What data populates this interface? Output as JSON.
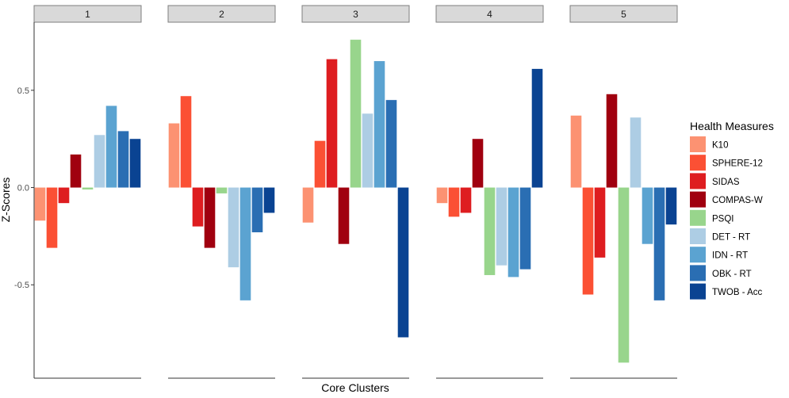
{
  "chart_data": {
    "type": "bar",
    "xlabel": "Core Clusters",
    "ylabel": "Z-Scores",
    "ylim": [
      -0.98,
      0.85
    ],
    "yticks": [
      {
        "value": 0.5,
        "label": "0.5"
      },
      {
        "value": 0.0,
        "label": "0.0"
      },
      {
        "value": -0.5,
        "label": "-0.5"
      }
    ],
    "facets": [
      "1",
      "2",
      "3",
      "4",
      "5"
    ],
    "legend": {
      "title": "Health Measures",
      "position": "right"
    },
    "series": [
      {
        "name": "K10",
        "color": "#FC9272",
        "values": [
          -0.17,
          0.33,
          -0.18,
          -0.08,
          0.37
        ]
      },
      {
        "name": "SPHERE-12",
        "color": "#FB5034",
        "values": [
          -0.31,
          0.47,
          0.24,
          -0.15,
          -0.55
        ]
      },
      {
        "name": "SIDAS",
        "color": "#DE1D20",
        "values": [
          -0.08,
          -0.2,
          0.66,
          -0.13,
          -0.36
        ]
      },
      {
        "name": "COMPAS-W",
        "color": "#A0000F",
        "values": [
          0.17,
          -0.31,
          -0.29,
          0.25,
          0.48
        ]
      },
      {
        "name": "PSQI",
        "color": "#98D58C",
        "values": [
          -0.01,
          -0.03,
          0.76,
          -0.45,
          -0.9
        ]
      },
      {
        "name": "DET - RT",
        "color": "#ADCDE4",
        "values": [
          0.27,
          -0.41,
          0.38,
          -0.4,
          0.36
        ]
      },
      {
        "name": "IDN - RT",
        "color": "#5BA3D1",
        "values": [
          0.42,
          -0.58,
          0.65,
          -0.46,
          -0.29
        ]
      },
      {
        "name": "OBK - RT",
        "color": "#2A6EB3",
        "values": [
          0.29,
          -0.23,
          0.45,
          -0.42,
          -0.58
        ]
      },
      {
        "name": "TWOB - Acc",
        "color": "#0A4392",
        "values": [
          0.25,
          -0.13,
          -0.77,
          0.61,
          -0.19
        ]
      }
    ],
    "grid": false
  }
}
